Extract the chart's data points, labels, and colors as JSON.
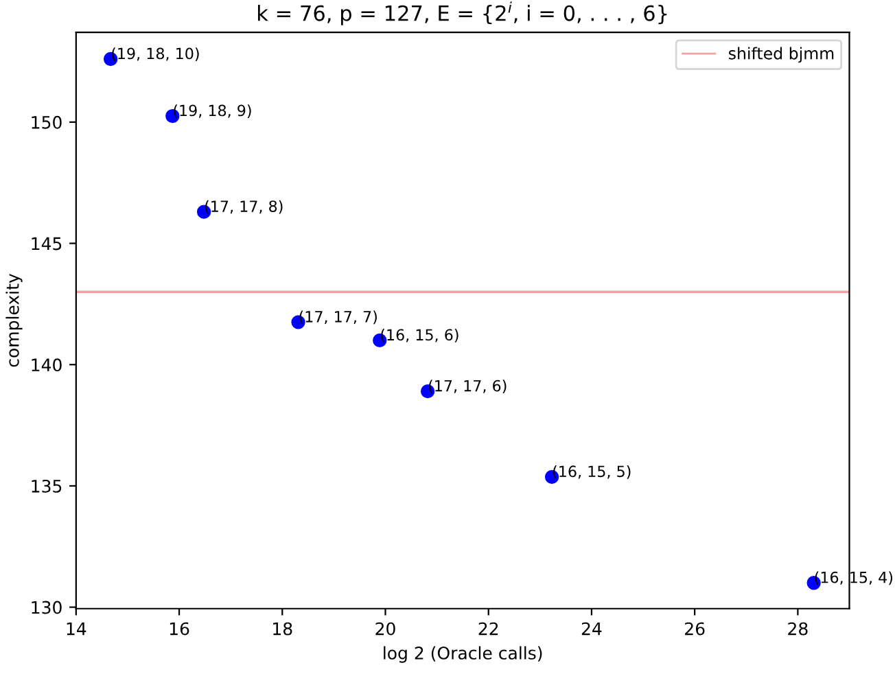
{
  "chart_data": {
    "type": "scatter",
    "title": "k = 76, p = 127, E = {2$^{i}$, i = 0, . . . , 6}",
    "xlabel": "log 2 (Oracle calls)",
    "ylabel": "complexity",
    "x": [
      14.67,
      15.87,
      16.48,
      18.31,
      19.89,
      20.82,
      23.23,
      28.31
    ],
    "series": [
      {
        "color": "#0000ff",
        "values": [
          152.6,
          150.25,
          146.3,
          141.75,
          141.0,
          138.9,
          135.37,
          131.0
        ]
      }
    ],
    "annotations": [
      {
        "text": "(19, 18, 10)",
        "x": 14.67,
        "y": 152.6
      },
      {
        "text": "(19, 18, 9)",
        "x": 15.87,
        "y": 150.25
      },
      {
        "text": "(17, 17, 8)",
        "x": 16.48,
        "y": 146.3
      },
      {
        "text": "(17, 17, 7)",
        "x": 18.31,
        "y": 141.75
      },
      {
        "text": "(16, 15, 6)",
        "x": 19.89,
        "y": 141.0
      },
      {
        "text": "(17, 17, 6)",
        "x": 20.82,
        "y": 138.9
      },
      {
        "text": "(16, 15, 5)",
        "x": 23.23,
        "y": 135.37
      },
      {
        "text": "(16, 15, 4)",
        "x": 28.31,
        "y": 131.0
      }
    ],
    "ref_lines": [
      {
        "axis": "y",
        "value": 143,
        "label": "shifted bjmm",
        "color": "#f4a0a0"
      }
    ],
    "xlim": [
      14,
      29
    ],
    "ylim": [
      129.94,
      153.7
    ],
    "xticks": [
      14,
      16,
      18,
      20,
      22,
      24,
      26,
      28
    ],
    "yticks": [
      130,
      135,
      140,
      145,
      150
    ],
    "marker": "circle",
    "legend": "top right",
    "grid": false
  }
}
